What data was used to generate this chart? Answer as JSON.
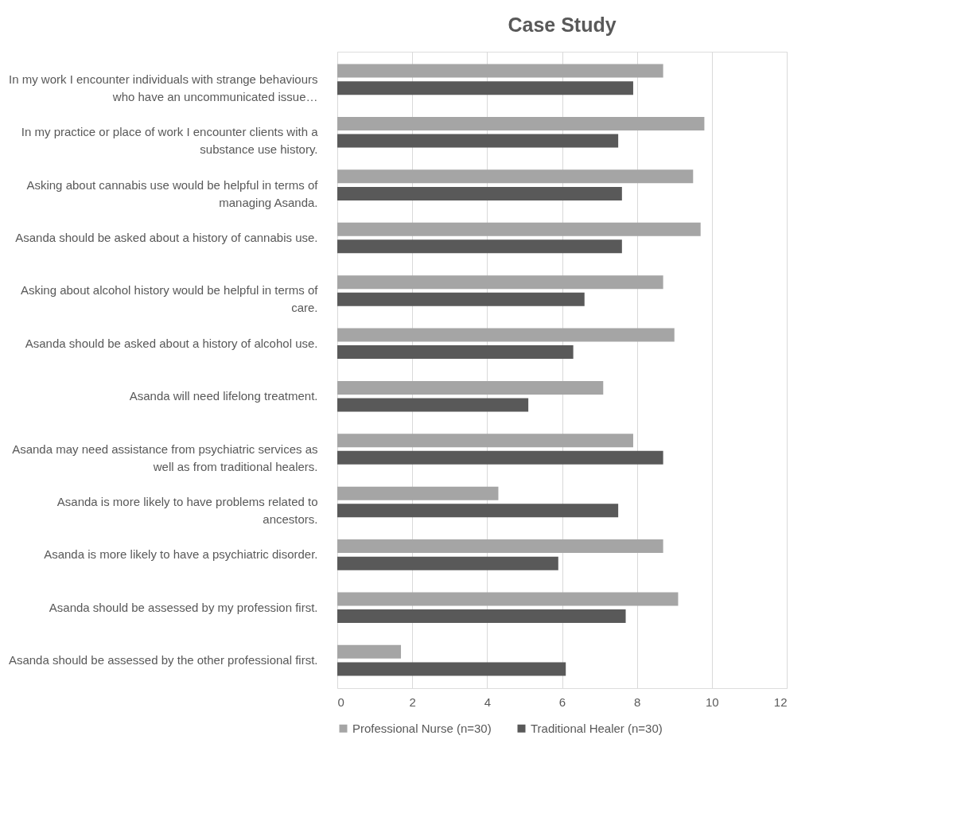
{
  "chart_data": {
    "type": "bar",
    "orientation": "horizontal",
    "title": "Case Study",
    "categories": [
      "In my work I encounter individuals with strange behaviours who have an uncommunicated issue…",
      "In my practice or place of work I encounter clients with a substance use history.",
      "Asking about cannabis use would be helpful in terms of managing Asanda.",
      "Asanda should be asked about a history of cannabis use.",
      "Asking about alcohol history would be helpful in terms of care.",
      "Asanda should be asked about a history of alcohol use.",
      "Asanda will need lifelong treatment.",
      "Asanda may need assistance from psychiatric services as well as from traditional healers.",
      "Asanda is more likely to have problems related to ancestors.",
      "Asanda is more likely to have a psychiatric disorder.",
      "Asanda should be assessed by my profession first.",
      "Asanda should be assessed by the other professional first."
    ],
    "series": [
      {
        "name": "Professional Nurse (n=30)",
        "color": "#a5a5a5",
        "values": [
          8.7,
          9.8,
          9.5,
          9.7,
          8.7,
          9.0,
          7.1,
          7.9,
          4.3,
          8.7,
          9.1,
          1.7
        ]
      },
      {
        "name": "Traditional Healer (n=30)",
        "color": "#595959",
        "values": [
          7.9,
          7.5,
          7.6,
          7.6,
          6.6,
          6.3,
          5.1,
          8.7,
          7.5,
          5.9,
          7.7,
          6.1
        ]
      }
    ],
    "xlim": [
      0,
      12
    ],
    "xticks": [
      0,
      2,
      4,
      6,
      8,
      10,
      12
    ],
    "grid": "x",
    "legend": "bottom"
  }
}
